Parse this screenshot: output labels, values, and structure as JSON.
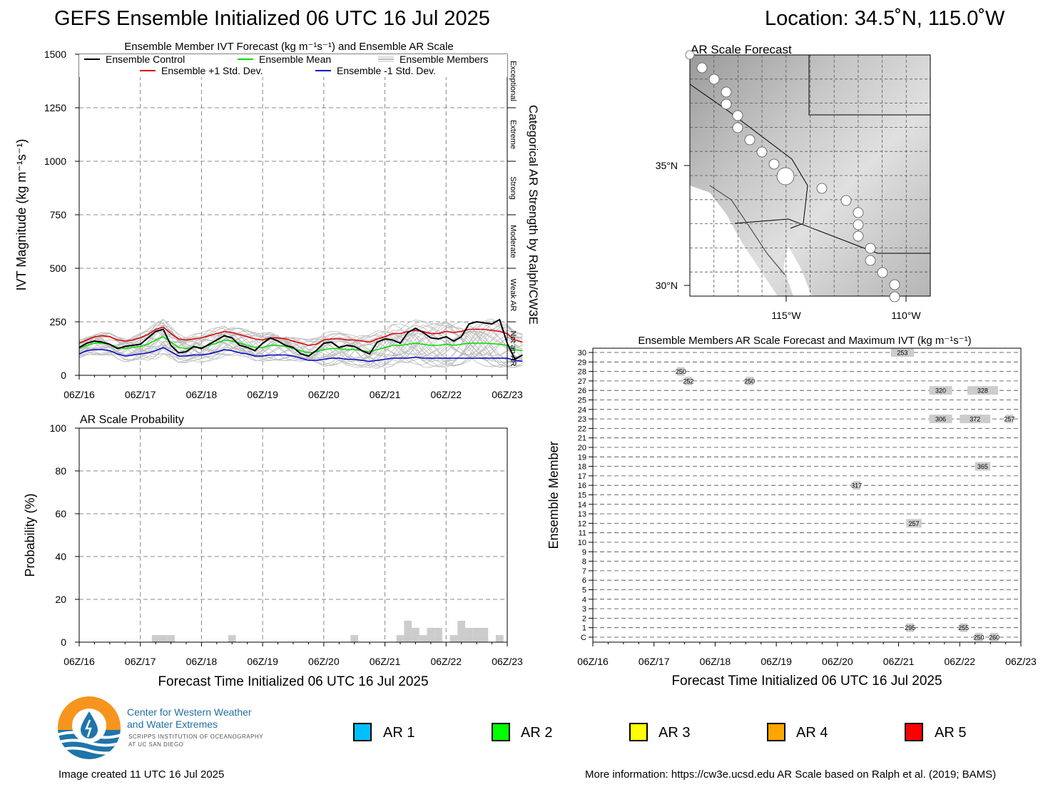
{
  "header": {
    "title": "GEFS Ensemble Initialized 06 UTC 16 Jul 2025",
    "location": "Location: 34.5˚N, 115.0˚W"
  },
  "chart_data": [
    {
      "type": "line",
      "title": "Ensemble Member IVT Forecast (kg m⁻¹s⁻¹) and Ensemble AR Scale",
      "ylabel": "IVT Magnitude (kg m⁻¹s⁻¹)",
      "right_label": "Categorical AR Strength by Ralph/CW3E",
      "categories_right": [
        "Exceptional",
        "Extreme",
        "Strong",
        "Moderate",
        "Weak AR",
        "Not an AR"
      ],
      "ylim": [
        0,
        1500
      ],
      "yticks": [
        0,
        250,
        500,
        750,
        1000,
        1250,
        1500
      ],
      "xticks": [
        "06Z/16",
        "06Z/17",
        "06Z/18",
        "06Z/19",
        "06Z/20",
        "06Z/21",
        "06Z/22",
        "06Z/23"
      ],
      "x_hours_step": 6,
      "legend": [
        "Ensemble Control",
        "Ensemble Mean",
        "Ensemble Members",
        "Ensemble +1 Std. Dev.",
        "Ensemble -1 Std. Dev."
      ],
      "series": [
        {
          "name": "Ensemble Control",
          "color": "#000000",
          "values": [
            130,
            150,
            160,
            155,
            145,
            125,
            135,
            140,
            145,
            175,
            205,
            215,
            140,
            105,
            110,
            135,
            125,
            145,
            165,
            185,
            175,
            140,
            130,
            115,
            150,
            175,
            160,
            140,
            130,
            100,
            90,
            115,
            150,
            155,
            130,
            140,
            135,
            115,
            100,
            155,
            170,
            165,
            150,
            200,
            220,
            200,
            175,
            170,
            180,
            160,
            180,
            240,
            250,
            245,
            240,
            260,
            150,
            75,
            95
          ]
        },
        {
          "name": "Ensemble Mean",
          "color": "#00dd00",
          "values": [
            125,
            140,
            150,
            150,
            145,
            130,
            125,
            130,
            135,
            145,
            165,
            180,
            155,
            130,
            125,
            130,
            130,
            140,
            150,
            165,
            160,
            150,
            140,
            130,
            130,
            140,
            140,
            135,
            125,
            115,
            105,
            110,
            120,
            125,
            125,
            120,
            120,
            115,
            110,
            120,
            130,
            140,
            140,
            145,
            150,
            145,
            140,
            140,
            145,
            140,
            145,
            150,
            150,
            150,
            148,
            145,
            140,
            120,
            115
          ]
        },
        {
          "name": "Ensemble +1 Std. Dev.",
          "color": "#dd0000",
          "values": [
            150,
            165,
            180,
            185,
            180,
            165,
            160,
            165,
            175,
            190,
            215,
            225,
            195,
            170,
            165,
            170,
            175,
            185,
            195,
            205,
            200,
            190,
            180,
            170,
            165,
            175,
            175,
            170,
            160,
            150,
            140,
            145,
            165,
            170,
            170,
            165,
            165,
            160,
            155,
            170,
            180,
            195,
            195,
            205,
            210,
            205,
            195,
            195,
            205,
            200,
            205,
            215,
            215,
            215,
            210,
            205,
            195,
            165,
            155
          ]
        },
        {
          "name": "Ensemble -1 Std. Dev.",
          "color": "#0000cc",
          "values": [
            100,
            115,
            120,
            120,
            115,
            100,
            90,
            95,
            100,
            105,
            115,
            130,
            110,
            90,
            90,
            95,
            95,
            100,
            110,
            120,
            115,
            105,
            100,
            90,
            90,
            95,
            95,
            95,
            90,
            80,
            70,
            70,
            75,
            80,
            80,
            75,
            75,
            70,
            65,
            70,
            75,
            80,
            80,
            80,
            85,
            80,
            80,
            80,
            80,
            80,
            80,
            80,
            80,
            80,
            80,
            80,
            80,
            70,
            65
          ]
        }
      ],
      "members_color": "#bbbbbb"
    },
    {
      "type": "bar",
      "title": "AR Scale Probability",
      "xlabel": "Forecast Time Initialized 06 UTC 16 Jul 2025",
      "ylabel": "Probability (%)",
      "ylim": [
        0,
        100
      ],
      "yticks": [
        0,
        20,
        40,
        60,
        80,
        100
      ],
      "xticks": [
        "06Z/16",
        "06Z/17",
        "06Z/18",
        "06Z/19",
        "06Z/20",
        "06Z/21",
        "06Z/22",
        "06Z/23"
      ],
      "bars": [
        {
          "hour": 30,
          "value": 3.3
        },
        {
          "hour": 33,
          "value": 3.3
        },
        {
          "hour": 36,
          "value": 3.3
        },
        {
          "hour": 60,
          "value": 3.3
        },
        {
          "hour": 108,
          "value": 3.3
        },
        {
          "hour": 126,
          "value": 3.3
        },
        {
          "hour": 129,
          "value": 10
        },
        {
          "hour": 132,
          "value": 6.7
        },
        {
          "hour": 135,
          "value": 3.3
        },
        {
          "hour": 138,
          "value": 6.7
        },
        {
          "hour": 141,
          "value": 6.7
        },
        {
          "hour": 147,
          "value": 3.3
        },
        {
          "hour": 150,
          "value": 10
        },
        {
          "hour": 153,
          "value": 6.7
        },
        {
          "hour": 156,
          "value": 6.7
        },
        {
          "hour": 159,
          "value": 6.7
        },
        {
          "hour": 165,
          "value": 3.3
        }
      ],
      "bar_color": "#cccccc"
    },
    {
      "type": "map",
      "title": "AR Scale Forecast",
      "lat_labels": [
        "35°N",
        "30°N"
      ],
      "lon_labels": [
        "115°W",
        "110°W"
      ],
      "circle_color": "#ffffff"
    },
    {
      "type": "heatmap",
      "title": "Ensemble Members AR Scale Forecast and Maximum IVT (kg m⁻¹s⁻¹)",
      "xlabel": "Forecast Time Initialized 06 UTC 16 Jul 2025",
      "ylabel": "Ensemble Member",
      "members": [
        "C",
        "1",
        "2",
        "3",
        "4",
        "5",
        "6",
        "7",
        "8",
        "9",
        "10",
        "11",
        "12",
        "13",
        "14",
        "15",
        "16",
        "17",
        "18",
        "19",
        "20",
        "21",
        "22",
        "23",
        "24",
        "25",
        "26",
        "27",
        "28",
        "29",
        "30"
      ],
      "xticks": [
        "06Z/16",
        "06Z/17",
        "06Z/18",
        "06Z/19",
        "06Z/20",
        "06Z/21",
        "06Z/22",
        "06Z/23"
      ],
      "events": [
        {
          "member": "30",
          "start_hour": 117,
          "end_hour": 126,
          "ivt": "253"
        },
        {
          "member": "28",
          "start_hour": 33,
          "end_hour": 36,
          "ivt": "250"
        },
        {
          "member": "27",
          "start_hour": 36,
          "end_hour": 39,
          "ivt": "252"
        },
        {
          "member": "27",
          "start_hour": 60,
          "end_hour": 63,
          "ivt": "250"
        },
        {
          "member": "26",
          "start_hour": 132,
          "end_hour": 141,
          "ivt": "320"
        },
        {
          "member": "26",
          "start_hour": 147,
          "end_hour": 159,
          "ivt": "328"
        },
        {
          "member": "23",
          "start_hour": 132,
          "end_hour": 141,
          "ivt": "306"
        },
        {
          "member": "23",
          "start_hour": 144,
          "end_hour": 156,
          "ivt": "372"
        },
        {
          "member": "23",
          "start_hour": 162,
          "end_hour": 165,
          "ivt": "257"
        },
        {
          "member": "18",
          "start_hour": 150,
          "end_hour": 156,
          "ivt": "365"
        },
        {
          "member": "16",
          "start_hour": 102,
          "end_hour": 105,
          "ivt": "317"
        },
        {
          "member": "12",
          "start_hour": 123,
          "end_hour": 129,
          "ivt": "257"
        },
        {
          "member": "1",
          "start_hour": 123,
          "end_hour": 126,
          "ivt": "295"
        },
        {
          "member": "1",
          "start_hour": 144,
          "end_hour": 147,
          "ivt": "255"
        },
        {
          "member": "C",
          "start_hour": 150,
          "end_hour": 153,
          "ivt": "250"
        },
        {
          "member": "C",
          "start_hour": 156,
          "end_hour": 159,
          "ivt": "260"
        }
      ],
      "event_color": "#cccccc"
    }
  ],
  "ar_legend": [
    {
      "label": "AR 1",
      "color": "#00bfff"
    },
    {
      "label": "AR 2",
      "color": "#00ff00"
    },
    {
      "label": "AR 3",
      "color": "#ffff00"
    },
    {
      "label": "AR 4",
      "color": "#ffa500"
    },
    {
      "label": "AR 5",
      "color": "#ff0000"
    }
  ],
  "logo": {
    "line1": "Center for Western Weather",
    "line2": "and Water Extremes",
    "line3": "SCRIPPS INSTITUTION OF OCEANOGRAPHY",
    "line4": "AT UC SAN DIEGO"
  },
  "footer": {
    "created": "Image created 11 UTC 16 Jul 2025",
    "info": "More information: https://cw3e.ucsd.edu AR Scale based on Ralph et al. (2019; BAMS)"
  }
}
